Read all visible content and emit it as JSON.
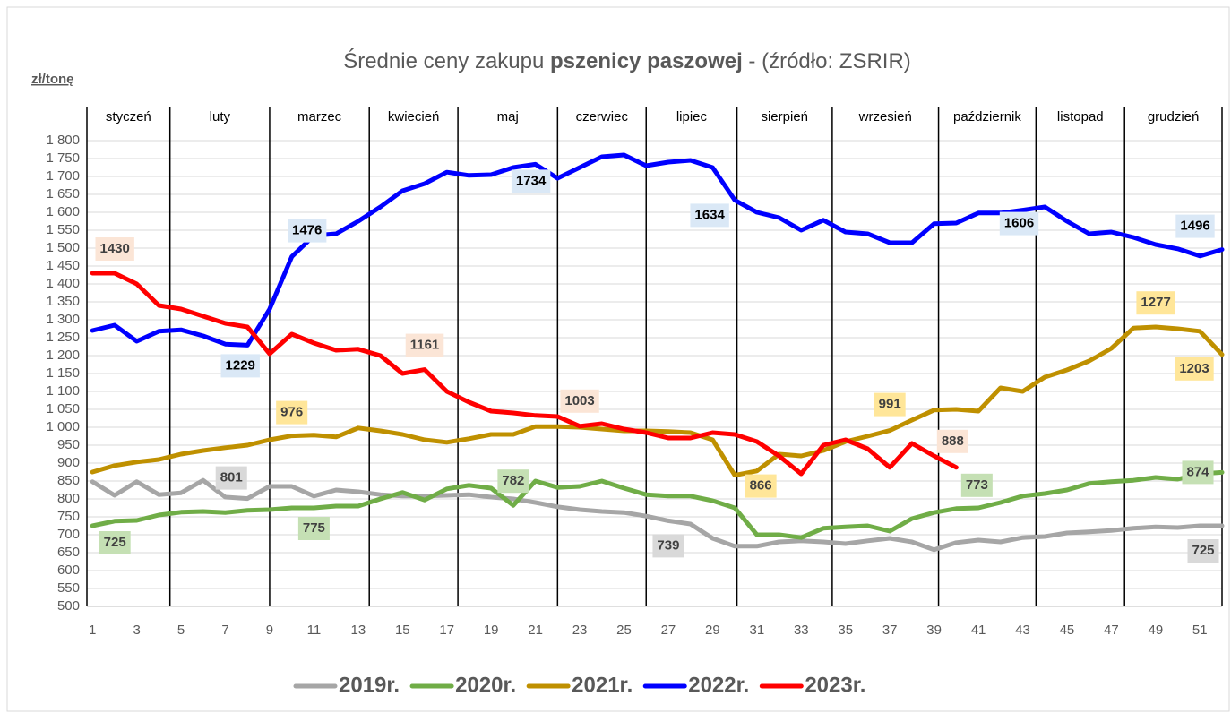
{
  "chart_data": {
    "type": "line",
    "title_prefix": "Średnie ceny zakupu ",
    "title_bold": "pszenicy paszowej",
    "title_suffix": " - (źródło: ZSRIR)",
    "y_label": "zł/tonę",
    "months": [
      "styczeń",
      "luty",
      "marzec",
      "kwiecień",
      "maj",
      "czerwiec",
      "lipiec",
      "sierpień",
      "wrzesień",
      "październik",
      "listopad",
      "grudzień"
    ],
    "month_boundaries": [
      0.75,
      4.5,
      9,
      13.5,
      17.5,
      22,
      26,
      30.1,
      34.4,
      39.2,
      43.6,
      47.6,
      52
    ],
    "x": [
      1,
      2,
      3,
      4,
      5,
      6,
      7,
      8,
      9,
      10,
      11,
      12,
      13,
      14,
      15,
      16,
      17,
      18,
      19,
      20,
      21,
      22,
      23,
      24,
      25,
      26,
      27,
      28,
      29,
      30,
      31,
      32,
      33,
      34,
      35,
      36,
      37,
      38,
      39,
      40,
      41,
      42,
      43,
      44,
      45,
      46,
      47,
      48,
      49,
      50,
      51,
      52
    ],
    "xlim": [
      0.75,
      52
    ],
    "xticks": [
      1,
      3,
      5,
      7,
      9,
      11,
      13,
      15,
      17,
      19,
      21,
      23,
      25,
      27,
      29,
      31,
      33,
      35,
      37,
      39,
      41,
      43,
      45,
      47,
      49,
      51
    ],
    "ylim": [
      500,
      1800
    ],
    "yticks": [
      500,
      550,
      600,
      650,
      700,
      750,
      800,
      850,
      900,
      950,
      {
        "value": 1000,
        "label": "1 000"
      },
      {
        "value": 1050,
        "label": "1 050"
      },
      {
        "value": 1100,
        "label": "1 100"
      },
      {
        "value": 1150,
        "label": "1 150"
      },
      {
        "value": 1200,
        "label": "1 200"
      },
      {
        "value": 1250,
        "label": "1 250"
      },
      {
        "value": 1300,
        "label": "1 300"
      },
      {
        "value": 1350,
        "label": "1 350"
      },
      {
        "value": 1400,
        "label": "1 400"
      },
      {
        "value": 1450,
        "label": "1 450"
      },
      {
        "value": 1500,
        "label": "1 500"
      },
      {
        "value": 1550,
        "label": "1 550"
      },
      {
        "value": 1600,
        "label": "1 600"
      },
      {
        "value": 1650,
        "label": "1 650"
      },
      {
        "value": 1700,
        "label": "1 700"
      },
      {
        "value": 1750,
        "label": "1 750"
      },
      {
        "value": 1800,
        "label": "1 800"
      }
    ],
    "grid": true,
    "legend": "bottom",
    "series": [
      {
        "name": "2019r.",
        "color": "#a6a6a6",
        "label_color": "#d9d9d9",
        "labeled": [
          7,
          26,
          51
        ],
        "values": [
          848,
          810,
          848,
          812,
          817,
          852,
          805,
          801,
          835,
          835,
          808,
          825,
          820,
          812,
          808,
          808,
          810,
          812,
          805,
          800,
          790,
          778,
          770,
          765,
          762,
          752,
          739,
          730,
          690,
          668,
          668,
          680,
          683,
          680,
          675,
          683,
          690,
          680,
          658,
          678,
          685,
          680,
          692,
          695,
          705,
          708,
          712,
          718,
          722,
          720,
          725,
          725
        ]
      },
      {
        "name": "2020r.",
        "color": "#70ad47",
        "label_color": "#c5e0b4",
        "labeled": [
          0,
          10,
          19,
          39,
          51
        ],
        "values": [
          725,
          738,
          740,
          755,
          763,
          765,
          762,
          768,
          770,
          775,
          775,
          780,
          780,
          800,
          818,
          797,
          828,
          838,
          830,
          782,
          850,
          832,
          835,
          850,
          830,
          812,
          808,
          808,
          795,
          775,
          700,
          700,
          692,
          718,
          722,
          725,
          710,
          745,
          762,
          773,
          775,
          790,
          808,
          815,
          825,
          843,
          848,
          852,
          860,
          855,
          870,
          874
        ]
      },
      {
        "name": "2021r.",
        "color": "#bf9000",
        "label_color": "#ffe699",
        "labeled": [
          9,
          29,
          36,
          47,
          51
        ],
        "values": [
          875,
          893,
          903,
          910,
          925,
          935,
          943,
          950,
          965,
          976,
          978,
          973,
          998,
          990,
          980,
          965,
          958,
          968,
          980,
          980,
          1002,
          1002,
          1000,
          995,
          990,
          990,
          988,
          985,
          965,
          866,
          878,
          925,
          920,
          935,
          960,
          975,
          991,
          1020,
          1048,
          1050,
          1045,
          1110,
          1100,
          1140,
          1160,
          1185,
          1220,
          1277,
          1280,
          1275,
          1268,
          1203
        ]
      },
      {
        "name": "2022r.",
        "color": "#0000ff",
        "label_color": "#dae8f6",
        "labeled": [
          7,
          9,
          20,
          29,
          42,
          51
        ],
        "values": [
          1270,
          1285,
          1240,
          1268,
          1272,
          1255,
          1232,
          1229,
          1330,
          1476,
          1535,
          1540,
          1575,
          1615,
          1660,
          1680,
          1712,
          1703,
          1705,
          1725,
          1734,
          1695,
          1725,
          1755,
          1760,
          1730,
          1740,
          1745,
          1725,
          1634,
          1600,
          1585,
          1550,
          1578,
          1545,
          1540,
          1515,
          1515,
          1568,
          1570,
          1598,
          1598,
          1606,
          1615,
          1575,
          1540,
          1545,
          1530,
          1510,
          1498,
          1478,
          1496
        ]
      },
      {
        "name": "2023r.",
        "color": "#ff0000",
        "label_color": "#fbe5d6",
        "labeled": [
          0,
          15,
          22,
          39
        ],
        "values": [
          1430,
          1430,
          1400,
          1340,
          1330,
          1310,
          1290,
          1280,
          1205,
          1260,
          1235,
          1215,
          1218,
          1200,
          1150,
          1161,
          1100,
          1070,
          1045,
          1040,
          1033,
          1030,
          1003,
          1010,
          995,
          985,
          970,
          970,
          985,
          980,
          960,
          920,
          870,
          950,
          965,
          940,
          888,
          955,
          920,
          888,
          null,
          null,
          null,
          null,
          null,
          null,
          null,
          null,
          null,
          null,
          null,
          null
        ]
      }
    ]
  }
}
